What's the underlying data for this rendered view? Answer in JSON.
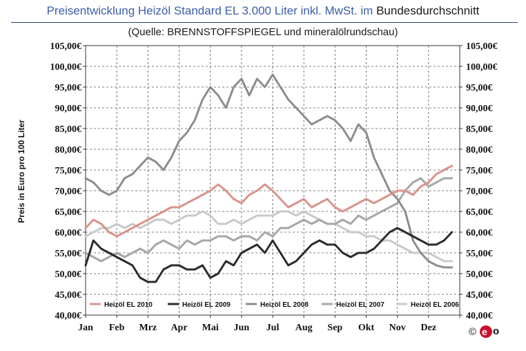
{
  "header": {
    "title_part1": "Preisentwicklung Heizöl Standard EL 3.000 Liter inkl. MwSt. im",
    "title_part2": "Bundesdurchschnitt",
    "subtitle": "(Quelle: BRENNSTOFFSPIEGEL und mineralölrundschau)"
  },
  "logo": {
    "copyright_symbol": "©",
    "mark_letter": "e",
    "suffix_letter": "o",
    "brand_color": "#c8102e"
  },
  "chart_data": {
    "type": "line",
    "title": "Preisentwicklung Heizöl Standard EL 3.000 Liter inkl. MwSt. im Bundesdurchschnitt",
    "subtitle": "(Quelle: BRENNSTOFFSPIEGEL und mineralölrundschau)",
    "ylabel": "Preis in Euro pro 100 Liter",
    "xlabel": "",
    "ylim": [
      40,
      105
    ],
    "y_ticks": [
      "40,00€",
      "45,00€",
      "50,00€",
      "55,00€",
      "60,00€",
      "65,00€",
      "70,00€",
      "75,00€",
      "80,00€",
      "85,00€",
      "90,00€",
      "95,00€",
      "100,00€",
      "105,00€"
    ],
    "y_ticks_right": [
      "40,00€",
      "45,00€",
      "50,00€",
      "55,00€",
      "60,00€",
      "65,00€",
      "70,00€",
      "75,00€",
      "80,00€",
      "85,00€",
      "90,00€",
      "95,00€",
      "100,00€",
      "105,00€"
    ],
    "x_categories": [
      "Jan",
      "Feb",
      "Mrz",
      "Apr",
      "Mai",
      "Jun",
      "Jul",
      "Aug",
      "Sep",
      "Okt",
      "Nov",
      "Dez"
    ],
    "x_range": [
      0,
      12
    ],
    "grid": {
      "horizontal": true,
      "vertical": true,
      "style": "dashed"
    },
    "legend_position": "bottom-inside",
    "series": [
      {
        "name": "Heizöl EL 2010",
        "color": "#d9938c",
        "x": [
          0.0,
          0.25,
          0.5,
          0.75,
          1.0,
          1.25,
          1.5,
          1.75,
          2.0,
          2.25,
          2.5,
          2.75,
          3.0,
          3.25,
          3.5,
          3.75,
          4.0,
          4.25,
          4.5,
          4.75,
          5.0,
          5.25,
          5.5,
          5.75,
          6.0,
          6.25,
          6.5,
          6.75,
          7.0,
          7.25,
          7.5,
          7.75,
          8.0,
          8.25,
          8.5,
          8.75,
          9.0,
          9.25,
          9.5,
          9.75,
          10.0,
          10.25,
          10.5,
          10.75,
          11.0,
          11.25,
          11.5,
          11.75
        ],
        "values": [
          61,
          63,
          62,
          60,
          59,
          60,
          61,
          62,
          63,
          64,
          65,
          66,
          66,
          67,
          68,
          69,
          70,
          71.5,
          70,
          68,
          67,
          69,
          70,
          71.5,
          70,
          68,
          66,
          67,
          68,
          66,
          67,
          68,
          66,
          65,
          66,
          67,
          68,
          67,
          68,
          69,
          70,
          70,
          69,
          71,
          72,
          74,
          75,
          76
        ]
      },
      {
        "name": "Heizöl EL 2009",
        "color": "#2b2b2b",
        "x": [
          0.0,
          0.25,
          0.5,
          0.75,
          1.0,
          1.25,
          1.5,
          1.75,
          2.0,
          2.25,
          2.5,
          2.75,
          3.0,
          3.25,
          3.5,
          3.75,
          4.0,
          4.25,
          4.5,
          4.75,
          5.0,
          5.25,
          5.5,
          5.75,
          6.0,
          6.25,
          6.5,
          6.75,
          7.0,
          7.25,
          7.5,
          7.75,
          8.0,
          8.25,
          8.5,
          8.75,
          9.0,
          9.25,
          9.5,
          9.75,
          10.0,
          10.25,
          10.5,
          10.75,
          11.0,
          11.25,
          11.5,
          11.75
        ],
        "values": [
          52,
          58,
          56,
          55,
          54,
          53,
          52,
          49,
          48,
          48,
          51,
          52,
          52,
          51,
          51,
          52,
          49,
          50,
          53,
          52,
          55,
          56,
          57,
          55,
          58,
          55,
          52,
          53,
          55,
          57,
          58,
          57,
          57,
          55,
          54,
          55,
          55,
          56,
          58,
          60,
          61,
          60,
          59,
          58,
          57,
          57,
          58,
          60
        ]
      },
      {
        "name": "Heizöl EL 2008",
        "color": "#8c8c8c",
        "x": [
          0.0,
          0.25,
          0.5,
          0.75,
          1.0,
          1.25,
          1.5,
          1.75,
          2.0,
          2.25,
          2.5,
          2.75,
          3.0,
          3.25,
          3.5,
          3.75,
          4.0,
          4.25,
          4.5,
          4.75,
          5.0,
          5.25,
          5.5,
          5.75,
          6.0,
          6.25,
          6.5,
          6.75,
          7.0,
          7.25,
          7.5,
          7.75,
          8.0,
          8.25,
          8.5,
          8.75,
          9.0,
          9.25,
          9.5,
          9.75,
          10.0,
          10.25,
          10.5,
          10.75,
          11.0,
          11.25,
          11.5,
          11.75
        ],
        "values": [
          73,
          72,
          70,
          69,
          70,
          73,
          74,
          76,
          78,
          77,
          75,
          78,
          82,
          84,
          87,
          92,
          95,
          93,
          90,
          95,
          97,
          93,
          97,
          95,
          98,
          95,
          92,
          90,
          88,
          86,
          87,
          88,
          87,
          85,
          82,
          86,
          84,
          78,
          74,
          70,
          68,
          65,
          58,
          55,
          53,
          52,
          51.5,
          51.5
        ]
      },
      {
        "name": "Heizöl EL 2007",
        "color": "#a6a6a6",
        "x": [
          0.0,
          0.25,
          0.5,
          0.75,
          1.0,
          1.25,
          1.5,
          1.75,
          2.0,
          2.25,
          2.5,
          2.75,
          3.0,
          3.25,
          3.5,
          3.75,
          4.0,
          4.25,
          4.5,
          4.75,
          5.0,
          5.25,
          5.5,
          5.75,
          6.0,
          6.25,
          6.5,
          6.75,
          7.0,
          7.25,
          7.5,
          7.75,
          8.0,
          8.25,
          8.5,
          8.75,
          9.0,
          9.25,
          9.5,
          9.75,
          10.0,
          10.25,
          10.5,
          10.75,
          11.0,
          11.25,
          11.5,
          11.75
        ],
        "values": [
          55,
          54,
          53,
          54,
          55,
          54,
          55,
          56,
          55,
          57,
          58,
          57,
          56,
          58,
          57,
          58,
          58,
          59,
          59,
          58,
          59,
          59,
          58,
          60,
          59,
          61,
          61,
          62,
          63,
          62,
          63,
          62,
          62,
          63,
          62,
          64,
          63,
          64,
          65,
          66,
          67,
          70,
          72,
          73,
          71,
          72,
          73,
          73
        ]
      },
      {
        "name": "Heizöl EL 2006",
        "color": "#c9c9c9",
        "x": [
          0.0,
          0.25,
          0.5,
          0.75,
          1.0,
          1.25,
          1.5,
          1.75,
          2.0,
          2.25,
          2.5,
          2.75,
          3.0,
          3.25,
          3.5,
          3.75,
          4.0,
          4.25,
          4.5,
          4.75,
          5.0,
          5.25,
          5.5,
          5.75,
          6.0,
          6.25,
          6.5,
          6.75,
          7.0,
          7.25,
          7.5,
          7.75,
          8.0,
          8.25,
          8.5,
          8.75,
          9.0,
          9.25,
          9.5,
          9.75,
          10.0,
          10.25,
          10.5,
          10.75,
          11.0,
          11.25,
          11.5,
          11.75
        ],
        "values": [
          59,
          60,
          61,
          61,
          62,
          61,
          62,
          61,
          62,
          63,
          63,
          62,
          63,
          64,
          64,
          65,
          64,
          62,
          62,
          63,
          62,
          63,
          64,
          64,
          64,
          65,
          65,
          64,
          65,
          64,
          63,
          62,
          62,
          61,
          60,
          60,
          59,
          59,
          58,
          58,
          57,
          56,
          55,
          55,
          55,
          54,
          53,
          53
        ]
      }
    ]
  }
}
